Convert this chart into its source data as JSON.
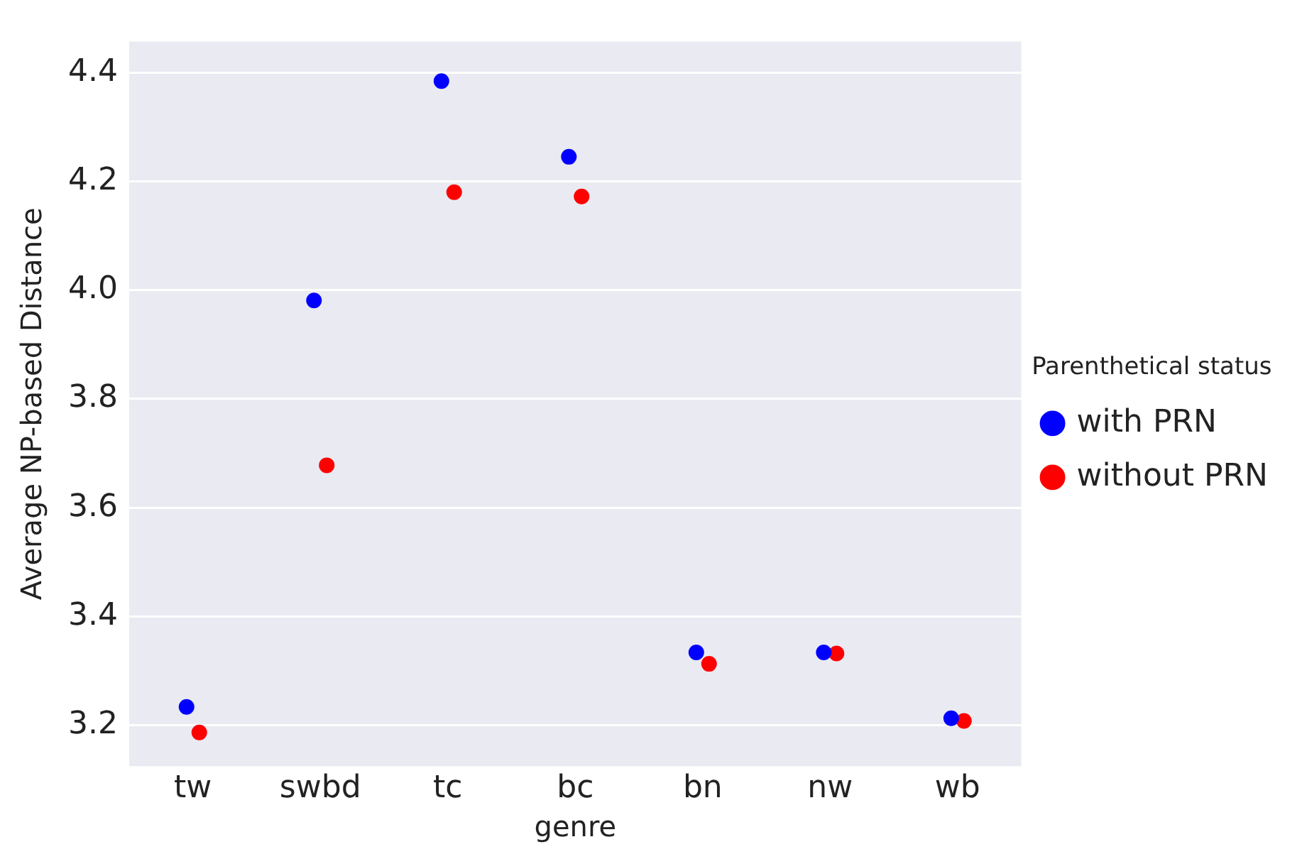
{
  "chart_data": {
    "type": "scatter",
    "xlabel": "genre",
    "ylabel": "Average NP-based Distance",
    "legend_title": "Parenthetical status",
    "legend": "right",
    "grid": "y",
    "marker": "circle",
    "categories": [
      "tw",
      "swbd",
      "tc",
      "bc",
      "bn",
      "nw",
      "wb"
    ],
    "ylim": [
      3.125,
      4.457
    ],
    "yticks": [
      3.2,
      3.4,
      3.6,
      3.8,
      {
        "value": 4,
        "label": "4.0"
      },
      4.2,
      4.4
    ],
    "series": [
      {
        "name": "with PRN",
        "color": "#0000ff",
        "values": [
          3.234,
          3.981,
          4.384,
          4.245,
          3.334,
          3.334,
          3.213
        ]
      },
      {
        "name": "without PRN",
        "color": "#ff0000",
        "values": [
          3.187,
          3.678,
          4.18,
          4.172,
          3.313,
          3.332,
          3.208
        ]
      }
    ]
  }
}
